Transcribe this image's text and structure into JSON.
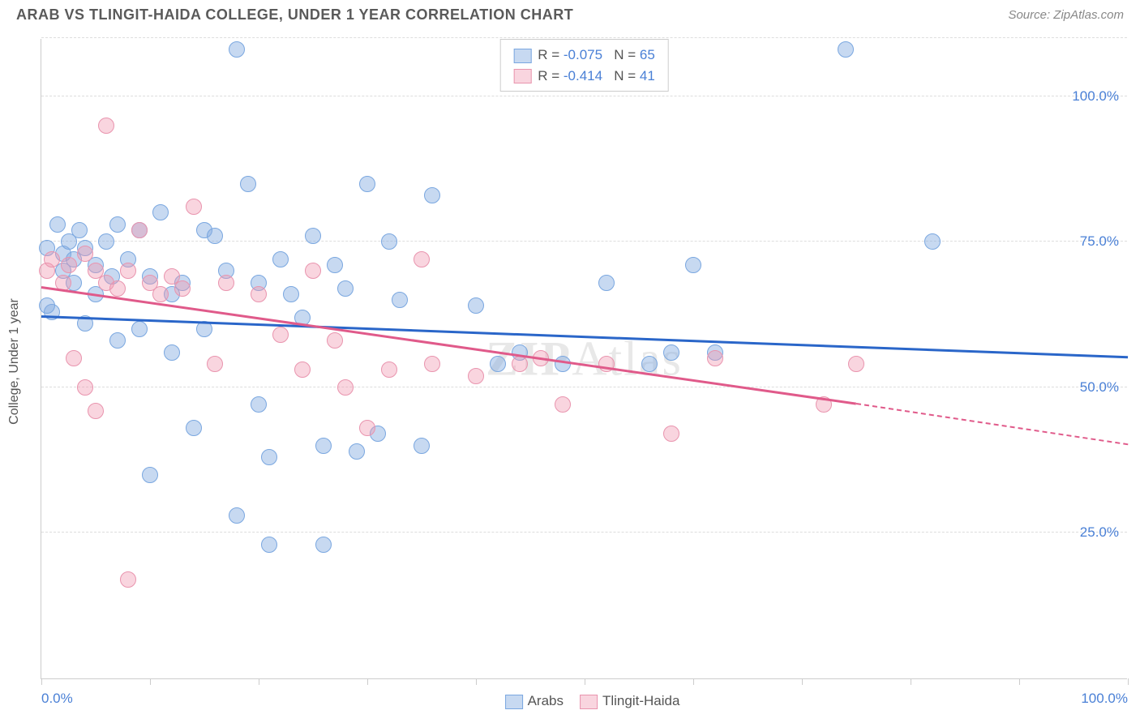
{
  "title": "ARAB VS TLINGIT-HAIDA COLLEGE, UNDER 1 YEAR CORRELATION CHART",
  "source": "Source: ZipAtlas.com",
  "watermark_1": "ZIP",
  "watermark_2": "Atlas",
  "yaxis_label": "College, Under 1 year",
  "chart": {
    "type": "scatter",
    "xlim": [
      0,
      100
    ],
    "ylim": [
      0,
      110
    ],
    "background_color": "#ffffff",
    "grid_color": "#dddddd",
    "ygrid": [
      {
        "v": 25,
        "label": "25.0%"
      },
      {
        "v": 50,
        "label": "50.0%"
      },
      {
        "v": 75,
        "label": "75.0%"
      },
      {
        "v": 100,
        "label": "100.0%"
      },
      {
        "v": 110,
        "label": ""
      }
    ],
    "xticks": [
      0,
      10,
      20,
      30,
      40,
      50,
      60,
      70,
      80,
      90,
      100
    ],
    "xtick_labels": {
      "0": "0.0%",
      "100": "100.0%"
    },
    "series": [
      {
        "name": "Arabs",
        "color_fill": "rgba(130,170,225,0.45)",
        "color_stroke": "#7aa7e0",
        "trend_color": "#2a66c9",
        "R": "-0.075",
        "N": "65",
        "marker_radius": 10,
        "trend": {
          "x1": 0,
          "y1": 62,
          "x2": 100,
          "y2": 55
        },
        "points": [
          [
            0.5,
            74
          ],
          [
            1,
            63
          ],
          [
            1.5,
            78
          ],
          [
            2,
            73
          ],
          [
            2,
            70
          ],
          [
            2.5,
            75
          ],
          [
            3,
            72
          ],
          [
            3,
            68
          ],
          [
            3.5,
            77
          ],
          [
            4,
            61
          ],
          [
            4,
            74
          ],
          [
            5,
            71
          ],
          [
            5,
            66
          ],
          [
            6,
            75
          ],
          [
            6.5,
            69
          ],
          [
            7,
            78
          ],
          [
            7,
            58
          ],
          [
            8,
            72
          ],
          [
            9,
            60
          ],
          [
            9,
            77
          ],
          [
            10,
            35
          ],
          [
            10,
            69
          ],
          [
            11,
            80
          ],
          [
            12,
            56
          ],
          [
            12,
            66
          ],
          [
            13,
            68
          ],
          [
            14,
            43
          ],
          [
            15,
            77
          ],
          [
            15,
            60
          ],
          [
            16,
            76
          ],
          [
            17,
            70
          ],
          [
            18,
            28
          ],
          [
            18,
            108
          ],
          [
            19,
            85
          ],
          [
            20,
            47
          ],
          [
            20,
            68
          ],
          [
            21,
            23
          ],
          [
            21,
            38
          ],
          [
            22,
            72
          ],
          [
            23,
            66
          ],
          [
            24,
            62
          ],
          [
            25,
            76
          ],
          [
            26,
            40
          ],
          [
            26,
            23
          ],
          [
            27,
            71
          ],
          [
            28,
            67
          ],
          [
            29,
            39
          ],
          [
            30,
            85
          ],
          [
            31,
            42
          ],
          [
            32,
            75
          ],
          [
            33,
            65
          ],
          [
            35,
            40
          ],
          [
            36,
            83
          ],
          [
            40,
            64
          ],
          [
            42,
            54
          ],
          [
            44,
            56
          ],
          [
            48,
            54
          ],
          [
            52,
            68
          ],
          [
            56,
            54
          ],
          [
            58,
            56
          ],
          [
            60,
            71
          ],
          [
            62,
            56
          ],
          [
            74,
            108
          ],
          [
            82,
            75
          ],
          [
            0.5,
            64
          ]
        ]
      },
      {
        "name": "Tlingit-Haida",
        "color_fill": "rgba(240,150,175,0.40)",
        "color_stroke": "#e994ae",
        "trend_color": "#e05a8a",
        "R": "-0.414",
        "N": "41",
        "marker_radius": 10,
        "trend": {
          "x1": 0,
          "y1": 67,
          "x2": 75,
          "y2": 47
        },
        "trend_dash": {
          "x1": 75,
          "y1": 47,
          "x2": 100,
          "y2": 40
        },
        "points": [
          [
            0.5,
            70
          ],
          [
            1,
            72
          ],
          [
            2,
            68
          ],
          [
            2.5,
            71
          ],
          [
            3,
            55
          ],
          [
            4,
            73
          ],
          [
            4,
            50
          ],
          [
            5,
            70
          ],
          [
            5,
            46
          ],
          [
            6,
            95
          ],
          [
            6,
            68
          ],
          [
            7,
            67
          ],
          [
            8,
            17
          ],
          [
            8,
            70
          ],
          [
            9,
            77
          ],
          [
            10,
            68
          ],
          [
            11,
            66
          ],
          [
            12,
            69
          ],
          [
            13,
            67
          ],
          [
            14,
            81
          ],
          [
            16,
            54
          ],
          [
            17,
            68
          ],
          [
            20,
            66
          ],
          [
            22,
            59
          ],
          [
            24,
            53
          ],
          [
            25,
            70
          ],
          [
            27,
            58
          ],
          [
            28,
            50
          ],
          [
            30,
            43
          ],
          [
            32,
            53
          ],
          [
            35,
            72
          ],
          [
            36,
            54
          ],
          [
            40,
            52
          ],
          [
            44,
            54
          ],
          [
            46,
            55
          ],
          [
            48,
            47
          ],
          [
            52,
            54
          ],
          [
            58,
            42
          ],
          [
            62,
            55
          ],
          [
            72,
            47
          ],
          [
            75,
            54
          ]
        ]
      }
    ]
  },
  "stats_labels": {
    "R": "R =",
    "N": "N ="
  },
  "legend_bottom": [
    {
      "swatch_fill": "rgba(130,170,225,0.45)",
      "swatch_stroke": "#7aa7e0",
      "label": "Arabs"
    },
    {
      "swatch_fill": "rgba(240,150,175,0.40)",
      "swatch_stroke": "#e994ae",
      "label": "Tlingit-Haida"
    }
  ]
}
